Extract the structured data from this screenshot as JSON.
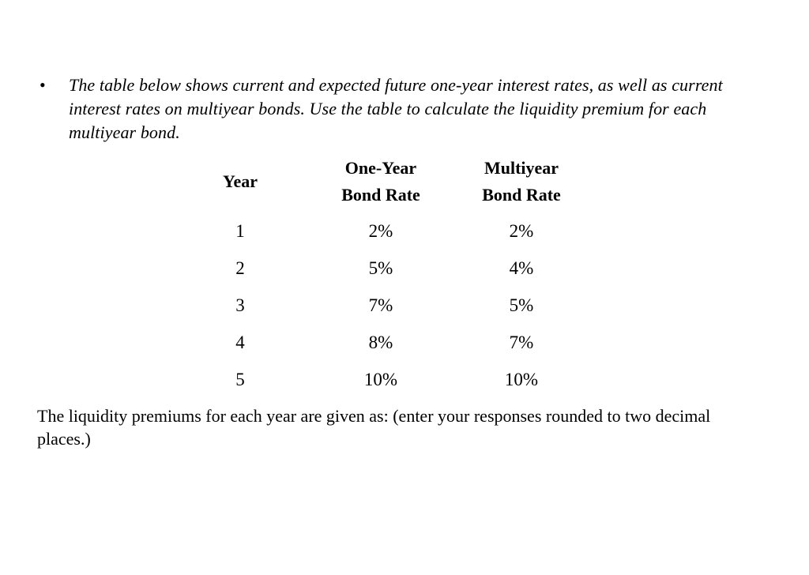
{
  "page": {
    "background_color": "#ffffff",
    "text_color": "#000000"
  },
  "bullet_item": {
    "marker": "•",
    "text": "The table below shows current and expected future one-year interest rates, as well as current interest rates on multiyear bonds. Use the table to calculate the liquidity premium for each multiyear bond."
  },
  "table": {
    "columns": [
      {
        "label": "Year"
      },
      {
        "label_line1": "One-Year",
        "label_line2": "Bond Rate"
      },
      {
        "label_line1": "Multiyear",
        "label_line2": "Bond Rate"
      }
    ],
    "rows": [
      {
        "year": "1",
        "one_year_rate": "2%",
        "multiyear_rate": "2%"
      },
      {
        "year": "2",
        "one_year_rate": "5%",
        "multiyear_rate": "4%"
      },
      {
        "year": "3",
        "one_year_rate": "7%",
        "multiyear_rate": "5%"
      },
      {
        "year": "4",
        "one_year_rate": "8%",
        "multiyear_rate": "7%"
      },
      {
        "year": "5",
        "one_year_rate": "10%",
        "multiyear_rate": "10%"
      }
    ]
  },
  "footer": {
    "text": "The liquidity premiums for each year are given as: (enter your responses rounded to two decimal places.)"
  }
}
